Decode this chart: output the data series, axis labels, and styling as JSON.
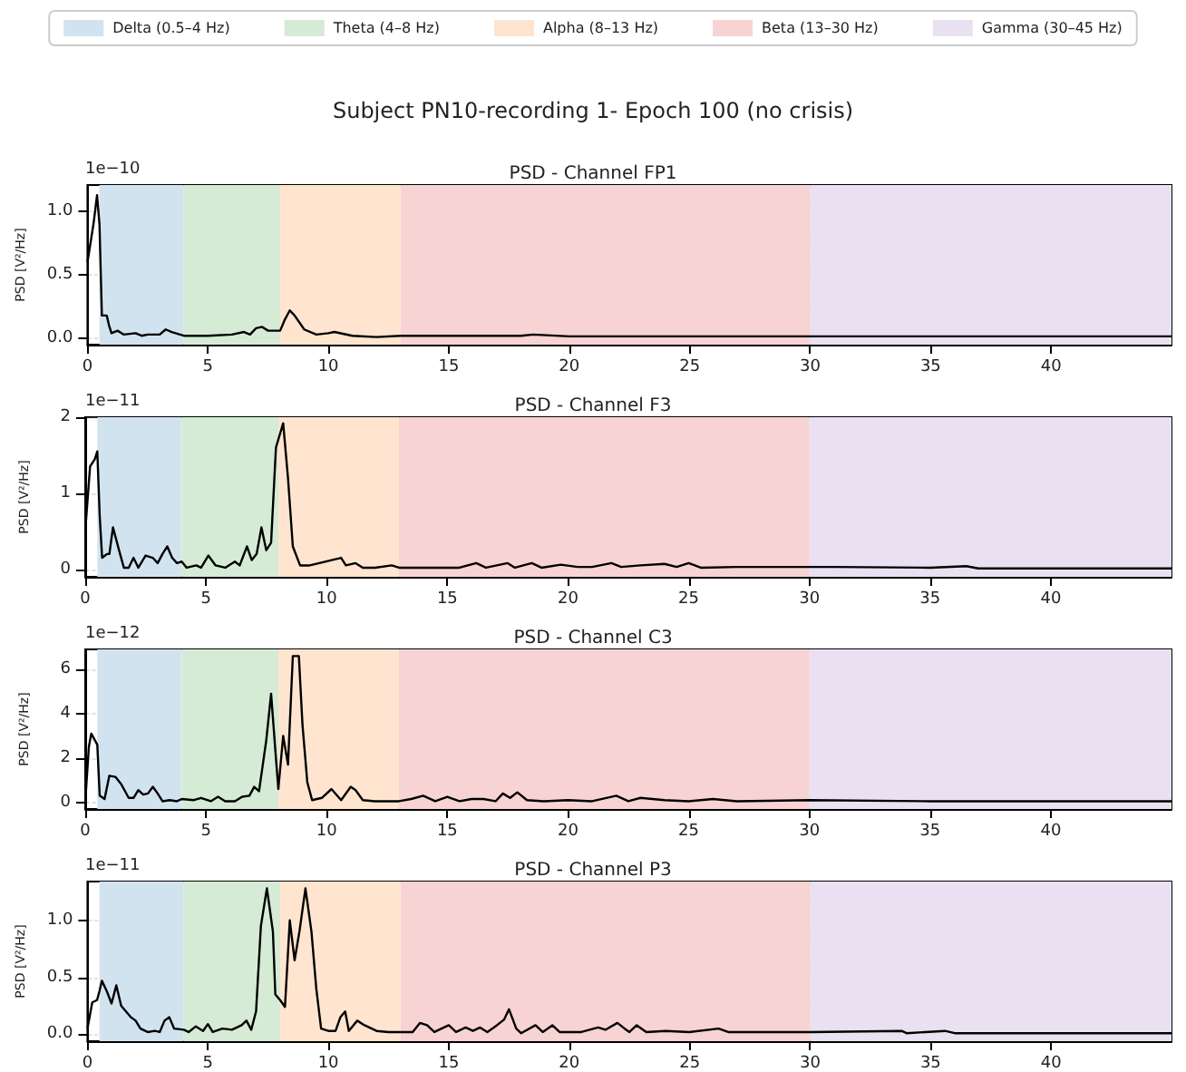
{
  "chart_data": [
    {
      "type": "line",
      "title": "Subject PN10-recording 1- Epoch 100 (no crisis)",
      "subtitle": "PSD - Channel FP1",
      "ylabel": "PSD [V²/Hz]",
      "annotations": [
        "1e−10"
      ],
      "legend": "top",
      "grid": true,
      "xlim": [
        0,
        45
      ],
      "xticks": [
        0,
        5,
        10,
        15,
        20,
        25,
        30,
        35,
        40
      ],
      "ylim": [
        -0.05,
        1.21
      ],
      "yticks": [
        {
          "value": 0,
          "label": "0.0"
        },
        {
          "value": 0.5,
          "label": "0.5"
        },
        {
          "value": 1,
          "label": "1.0"
        }
      ],
      "bands": [
        {
          "axis": "x",
          "from": 0.5,
          "to": 4,
          "label": "Delta (0.5–4 Hz)",
          "color": "#d2e3f0"
        },
        {
          "axis": "x",
          "from": 4,
          "to": 8,
          "label": "Theta (4–8 Hz)",
          "color": "#d5ebd5"
        },
        {
          "axis": "x",
          "from": 8,
          "to": 13,
          "label": "Alpha (8–13 Hz)",
          "color": "#ffe5cf"
        },
        {
          "axis": "x",
          "from": 13,
          "to": 30,
          "label": "Beta (13–30 Hz)",
          "color": "#f7d3d4"
        },
        {
          "axis": "x",
          "from": 30,
          "to": 45,
          "label": "Gamma (30–45 Hz)",
          "color": "#e9e1f2"
        }
      ],
      "series": [
        {
          "color": "#000000",
          "x": [
            0,
            0.25,
            0.4,
            0.5,
            0.6,
            0.8,
            0.9,
            1,
            1.25,
            1.5,
            2,
            2.25,
            2.5,
            3,
            3.25,
            3.5,
            4,
            5,
            6,
            6.5,
            6.75,
            7,
            7.25,
            7.5,
            8,
            8.2,
            8.4,
            8.6,
            9,
            9.5,
            10,
            10.25,
            11,
            12,
            13,
            16,
            18,
            18.5,
            20,
            30,
            45
          ],
          "values": [
            0.6,
            0.9,
            1.13,
            0.9,
            0.18,
            0.18,
            0.1,
            0.04,
            0.06,
            0.03,
            0.04,
            0.02,
            0.03,
            0.03,
            0.07,
            0.05,
            0.02,
            0.02,
            0.03,
            0.05,
            0.03,
            0.08,
            0.09,
            0.06,
            0.06,
            0.15,
            0.22,
            0.18,
            0.07,
            0.03,
            0.04,
            0.05,
            0.02,
            0.01,
            0.02,
            0.02,
            0.02,
            0.03,
            0.015,
            0.015,
            0.015
          ]
        }
      ]
    },
    {
      "type": "line",
      "title": "PSD - Channel F3",
      "ylabel": "PSD [V²/Hz]",
      "annotations": [
        "1e−11"
      ],
      "grid": true,
      "xlim": [
        0,
        45
      ],
      "xticks": [
        0,
        5,
        10,
        15,
        20,
        25,
        30,
        35,
        40
      ],
      "ylim": [
        -0.1,
        2.0
      ],
      "yticks": [
        0,
        1,
        2
      ],
      "bands": [
        {
          "axis": "x",
          "from": 0.5,
          "to": 4,
          "color": "#d2e3f0"
        },
        {
          "axis": "x",
          "from": 4,
          "to": 8,
          "color": "#d5ebd5"
        },
        {
          "axis": "x",
          "from": 8,
          "to": 13,
          "color": "#ffe5cf"
        },
        {
          "axis": "x",
          "from": 13,
          "to": 30,
          "color": "#f7d3d4"
        },
        {
          "axis": "x",
          "from": 30,
          "to": 45,
          "color": "#e9e1f2"
        }
      ],
      "series": [
        {
          "color": "#000000",
          "x": [
            0,
            0.2,
            0.4,
            0.5,
            0.6,
            0.7,
            0.9,
            1,
            1.15,
            1.4,
            1.6,
            1.8,
            2,
            2.2,
            2.5,
            2.8,
            3,
            3.2,
            3.4,
            3.6,
            3.8,
            4,
            4.2,
            4.6,
            4.8,
            5.1,
            5.4,
            5.8,
            6.2,
            6.4,
            6.7,
            6.9,
            7.1,
            7.3,
            7.5,
            7.7,
            7.9,
            8.2,
            8.4,
            8.6,
            8.9,
            9.3,
            9.7,
            10.2,
            10.6,
            10.8,
            11.2,
            11.5,
            12,
            12.7,
            13,
            14,
            15.5,
            16.2,
            16.6,
            17.5,
            17.8,
            18.5,
            18.9,
            19.7,
            20.4,
            21,
            21.8,
            22.2,
            23,
            24,
            24.5,
            25,
            25.5,
            27,
            30,
            31,
            35,
            36.5,
            37,
            45
          ],
          "values": [
            0.5,
            1.35,
            1.45,
            1.55,
            0.7,
            0.15,
            0.2,
            0.2,
            0.55,
            0.25,
            0.02,
            0.02,
            0.15,
            0.02,
            0.18,
            0.15,
            0.08,
            0.2,
            0.3,
            0.15,
            0.08,
            0.1,
            0.02,
            0.05,
            0.02,
            0.18,
            0.05,
            0.02,
            0.1,
            0.05,
            0.3,
            0.12,
            0.2,
            0.55,
            0.25,
            0.35,
            1.6,
            1.92,
            1.2,
            0.3,
            0.05,
            0.05,
            0.08,
            0.12,
            0.15,
            0.05,
            0.08,
            0.02,
            0.02,
            0.05,
            0.02,
            0.02,
            0.02,
            0.08,
            0.02,
            0.08,
            0.02,
            0.08,
            0.02,
            0.06,
            0.03,
            0.03,
            0.08,
            0.03,
            0.05,
            0.07,
            0.03,
            0.08,
            0.02,
            0.03,
            0.03,
            0.03,
            0.02,
            0.04,
            0.01,
            0.01
          ]
        }
      ]
    },
    {
      "type": "line",
      "title": "PSD - Channel C3",
      "ylabel": "PSD [V²/Hz]",
      "annotations": [
        "1e−12"
      ],
      "grid": true,
      "xlim": [
        0,
        45
      ],
      "xticks": [
        0,
        5,
        10,
        15,
        20,
        25,
        30,
        35,
        40
      ],
      "ylim": [
        -0.3,
        6.9
      ],
      "yticks": [
        0,
        2,
        4,
        6
      ],
      "bands": [
        {
          "axis": "x",
          "from": 0.5,
          "to": 4,
          "color": "#d2e3f0"
        },
        {
          "axis": "x",
          "from": 4,
          "to": 8,
          "color": "#d5ebd5"
        },
        {
          "axis": "x",
          "from": 8,
          "to": 13,
          "color": "#ffe5cf"
        },
        {
          "axis": "x",
          "from": 13,
          "to": 30,
          "color": "#f7d3d4"
        },
        {
          "axis": "x",
          "from": 30,
          "to": 45,
          "color": "#e9e1f2"
        }
      ],
      "series": [
        {
          "color": "#000000",
          "x": [
            0,
            0.15,
            0.25,
            0.5,
            0.6,
            0.8,
            1,
            1.25,
            1.5,
            1.8,
            2,
            2.2,
            2.4,
            2.6,
            2.8,
            3,
            3.2,
            3.5,
            3.8,
            4,
            4.5,
            4.8,
            5.2,
            5.5,
            5.8,
            6.2,
            6.5,
            6.8,
            7,
            7.2,
            7.5,
            7.7,
            7.9,
            8,
            8.2,
            8.4,
            8.6,
            8.85,
            9,
            9.2,
            9.4,
            9.8,
            10.2,
            10.6,
            11,
            11.2,
            11.5,
            12,
            13,
            13.5,
            14,
            14.5,
            15,
            15.5,
            16,
            16.5,
            17,
            17.3,
            17.6,
            17.9,
            18.3,
            19,
            20,
            21,
            22,
            22.5,
            23,
            24,
            25,
            26,
            27,
            30,
            35,
            40,
            45
          ],
          "values": [
            0,
            2.5,
            3.1,
            2.6,
            0.3,
            0.15,
            1.2,
            1.15,
            0.8,
            0.2,
            0.2,
            0.55,
            0.35,
            0.4,
            0.7,
            0.4,
            0.05,
            0.1,
            0.05,
            0.15,
            0.1,
            0.2,
            0.05,
            0.25,
            0.05,
            0.05,
            0.25,
            0.3,
            0.7,
            0.5,
            2.8,
            4.9,
            2,
            0.6,
            3,
            1.7,
            6.6,
            6.6,
            3.5,
            0.9,
            0.1,
            0.2,
            0.6,
            0.1,
            0.7,
            0.55,
            0.1,
            0.05,
            0.05,
            0.15,
            0.3,
            0.05,
            0.25,
            0.05,
            0.15,
            0.15,
            0.05,
            0.4,
            0.2,
            0.45,
            0.1,
            0.05,
            0.1,
            0.05,
            0.3,
            0.05,
            0.2,
            0.1,
            0.05,
            0.15,
            0.05,
            0.1,
            0.05,
            0.05,
            0.05
          ]
        }
      ]
    },
    {
      "type": "line",
      "title": "PSD - Channel P3",
      "ylabel": "PSD [V²/Hz]",
      "annotations": [
        "1e−11"
      ],
      "grid": true,
      "xlim": [
        0,
        45
      ],
      "xticks": [
        0,
        5,
        10,
        15,
        20,
        25,
        30,
        35,
        40
      ],
      "ylim": [
        -0.06,
        1.34
      ],
      "yticks": [
        {
          "value": 0,
          "label": "0.0"
        },
        {
          "value": 0.5,
          "label": "0.5"
        },
        {
          "value": 1,
          "label": "1.0"
        }
      ],
      "bands": [
        {
          "axis": "x",
          "from": 0.5,
          "to": 4,
          "color": "#d2e3f0"
        },
        {
          "axis": "x",
          "from": 4,
          "to": 8,
          "color": "#d5ebd5"
        },
        {
          "axis": "x",
          "from": 8,
          "to": 13,
          "color": "#ffe5cf"
        },
        {
          "axis": "x",
          "from": 13,
          "to": 30,
          "color": "#f7d3d4"
        },
        {
          "axis": "x",
          "from": 30,
          "to": 45,
          "color": "#e9e1f2"
        }
      ],
      "series": [
        {
          "color": "#000000",
          "x": [
            0,
            0.2,
            0.4,
            0.5,
            0.6,
            0.8,
            1,
            1.2,
            1.4,
            1.6,
            1.8,
            2,
            2.2,
            2.5,
            2.8,
            3,
            3.2,
            3.4,
            3.6,
            4,
            4.2,
            4.5,
            4.8,
            5,
            5.2,
            5.6,
            6,
            6.4,
            6.6,
            6.8,
            7,
            7.2,
            7.45,
            7.7,
            7.8,
            8,
            8.2,
            8.4,
            8.6,
            8.8,
            9.05,
            9.3,
            9.5,
            9.7,
            10,
            10.3,
            10.5,
            10.7,
            10.85,
            11.2,
            11.5,
            12,
            12.5,
            13,
            13.5,
            13.8,
            14.1,
            14.4,
            15,
            15.3,
            15.7,
            16,
            16.3,
            16.6,
            17,
            17.3,
            17.5,
            17.8,
            18,
            18.6,
            18.9,
            19.3,
            19.6,
            20.5,
            21.2,
            21.5,
            22,
            22.3,
            22.5,
            22.8,
            23.2,
            24,
            25,
            26.2,
            26.6,
            30,
            33.8,
            34,
            35.6,
            36,
            45
          ],
          "values": [
            0.05,
            0.28,
            0.3,
            0.38,
            0.47,
            0.38,
            0.27,
            0.43,
            0.25,
            0.2,
            0.15,
            0.12,
            0.05,
            0.02,
            0.03,
            0.02,
            0.12,
            0.15,
            0.05,
            0.04,
            0.02,
            0.07,
            0.03,
            0.09,
            0.02,
            0.05,
            0.04,
            0.08,
            0.12,
            0.04,
            0.2,
            0.95,
            1.28,
            0.9,
            0.35,
            0.3,
            0.24,
            1,
            0.65,
            0.9,
            1.28,
            0.9,
            0.4,
            0.05,
            0.03,
            0.03,
            0.15,
            0.2,
            0.03,
            0.12,
            0.08,
            0.03,
            0.02,
            0.02,
            0.02,
            0.1,
            0.08,
            0.02,
            0.08,
            0.02,
            0.06,
            0.03,
            0.06,
            0.02,
            0.08,
            0.13,
            0.22,
            0.05,
            0.01,
            0.08,
            0.02,
            0.08,
            0.02,
            0.02,
            0.06,
            0.04,
            0.1,
            0.05,
            0.02,
            0.08,
            0.02,
            0.03,
            0.02,
            0.05,
            0.02,
            0.02,
            0.03,
            0.01,
            0.03,
            0.01,
            0.01
          ]
        }
      ]
    }
  ]
}
